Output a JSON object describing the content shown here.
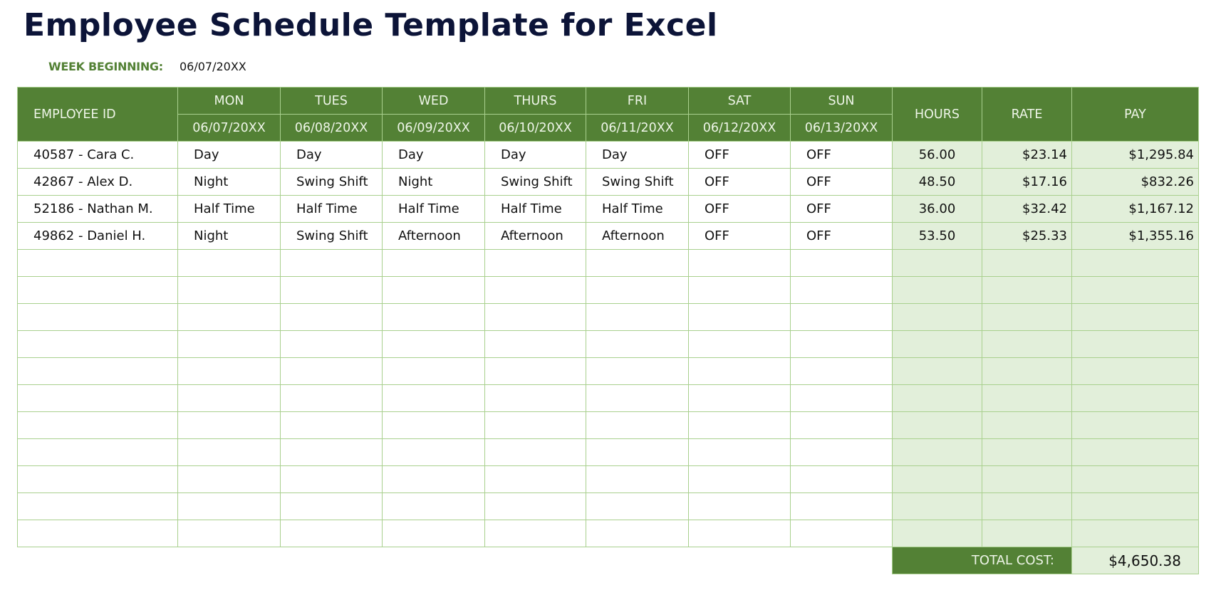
{
  "title": "Employee Schedule Template for Excel",
  "week_beginning": {
    "label": "WEEK BEGINNING:",
    "value": "06/07/20XX"
  },
  "colors": {
    "header": "#538135",
    "border": "#A9D08E",
    "fill": "#E2EFDA",
    "title": "#0C1438"
  },
  "headers": {
    "employee_id": "EMPLOYEE ID",
    "days": [
      {
        "day": "MON",
        "date": "06/07/20XX"
      },
      {
        "day": "TUES",
        "date": "06/08/20XX"
      },
      {
        "day": "WED",
        "date": "06/09/20XX"
      },
      {
        "day": "THURS",
        "date": "06/10/20XX"
      },
      {
        "day": "FRI",
        "date": "06/11/20XX"
      },
      {
        "day": "SAT",
        "date": "06/12/20XX"
      },
      {
        "day": "SUN",
        "date": "06/13/20XX"
      }
    ],
    "hours": "HOURS",
    "rate": "RATE",
    "pay": "PAY"
  },
  "rows": [
    {
      "employee": "40587 - Cara C.",
      "shifts": [
        "Day",
        "Day",
        "Day",
        "Day",
        "Day",
        "OFF",
        "OFF"
      ],
      "hours": "56.00",
      "rate": "$23.14",
      "pay": "$1,295.84"
    },
    {
      "employee": "42867 - Alex D.",
      "shifts": [
        "Night",
        "Swing Shift",
        "Night",
        "Swing Shift",
        "Swing Shift",
        "OFF",
        "OFF"
      ],
      "hours": "48.50",
      "rate": "$17.16",
      "pay": "$832.26"
    },
    {
      "employee": "52186 - Nathan M.",
      "shifts": [
        "Half Time",
        "Half Time",
        "Half Time",
        "Half Time",
        "Half Time",
        "OFF",
        "OFF"
      ],
      "hours": "36.00",
      "rate": "$32.42",
      "pay": "$1,167.12"
    },
    {
      "employee": "49862 - Daniel H.",
      "shifts": [
        "Night",
        "Swing Shift",
        "Afternoon",
        "Afternoon",
        "Afternoon",
        "OFF",
        "OFF"
      ],
      "hours": "53.50",
      "rate": "$25.33",
      "pay": "$1,355.16"
    }
  ],
  "empty_rows": 11,
  "total": {
    "label": "TOTAL COST:",
    "value": "$4,650.38"
  }
}
